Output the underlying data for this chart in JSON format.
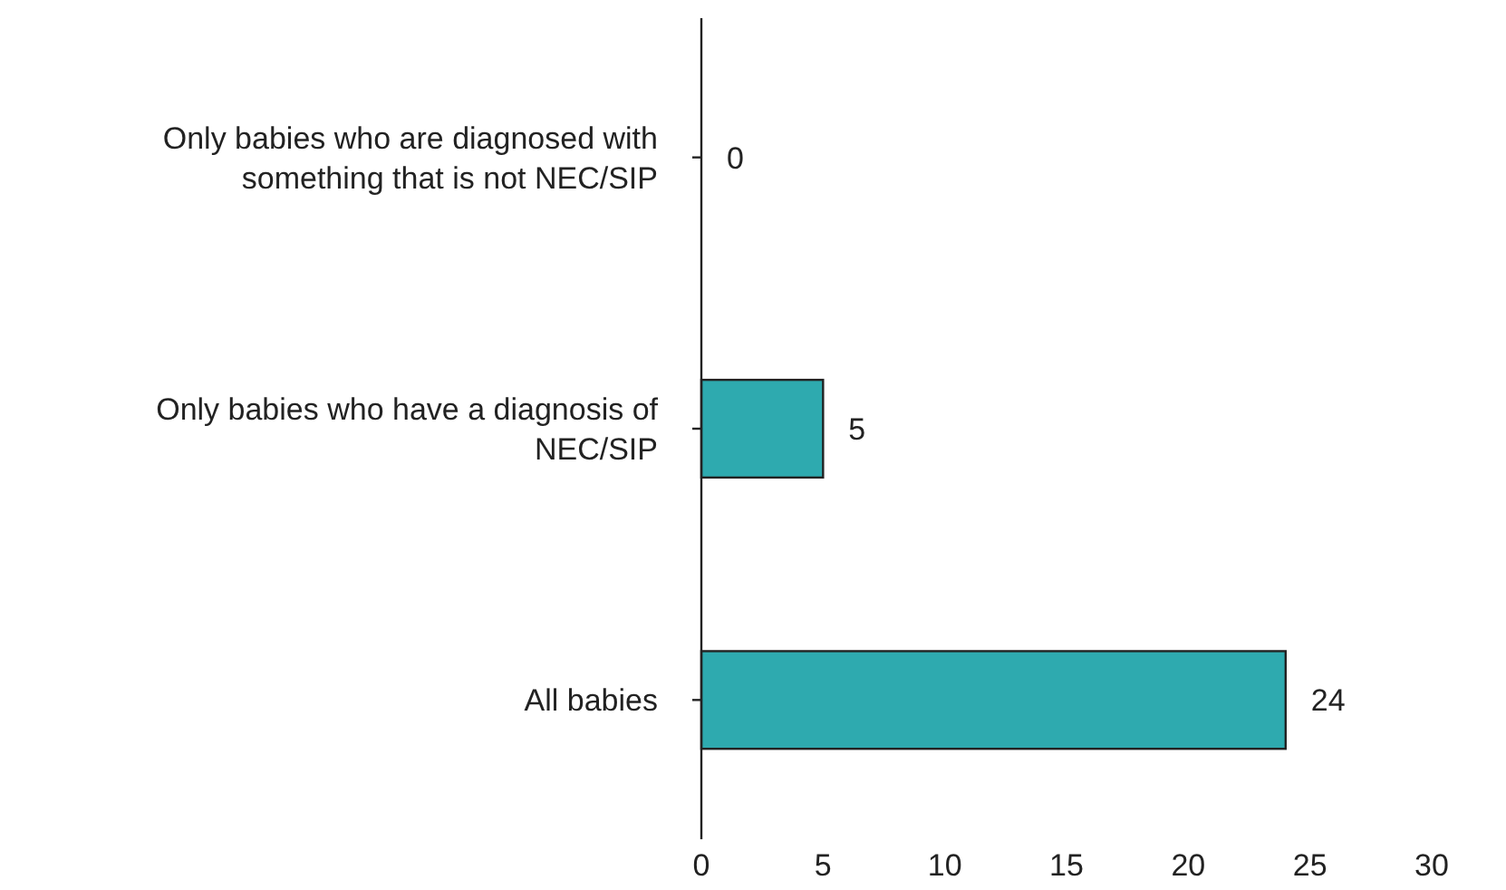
{
  "chart_data": {
    "type": "bar",
    "orientation": "horizontal",
    "categories": [
      "Only babies who are diagnosed with something that is not NEC/SIP",
      "Only babies who have a diagnosis of NEC/SIP",
      "All babies"
    ],
    "values": [
      0,
      5,
      24
    ],
    "color": "#2eaaaf",
    "xlim": [
      0,
      30
    ],
    "xticks": [
      0,
      5,
      10,
      15,
      20,
      25,
      30
    ],
    "data_labels": true
  }
}
